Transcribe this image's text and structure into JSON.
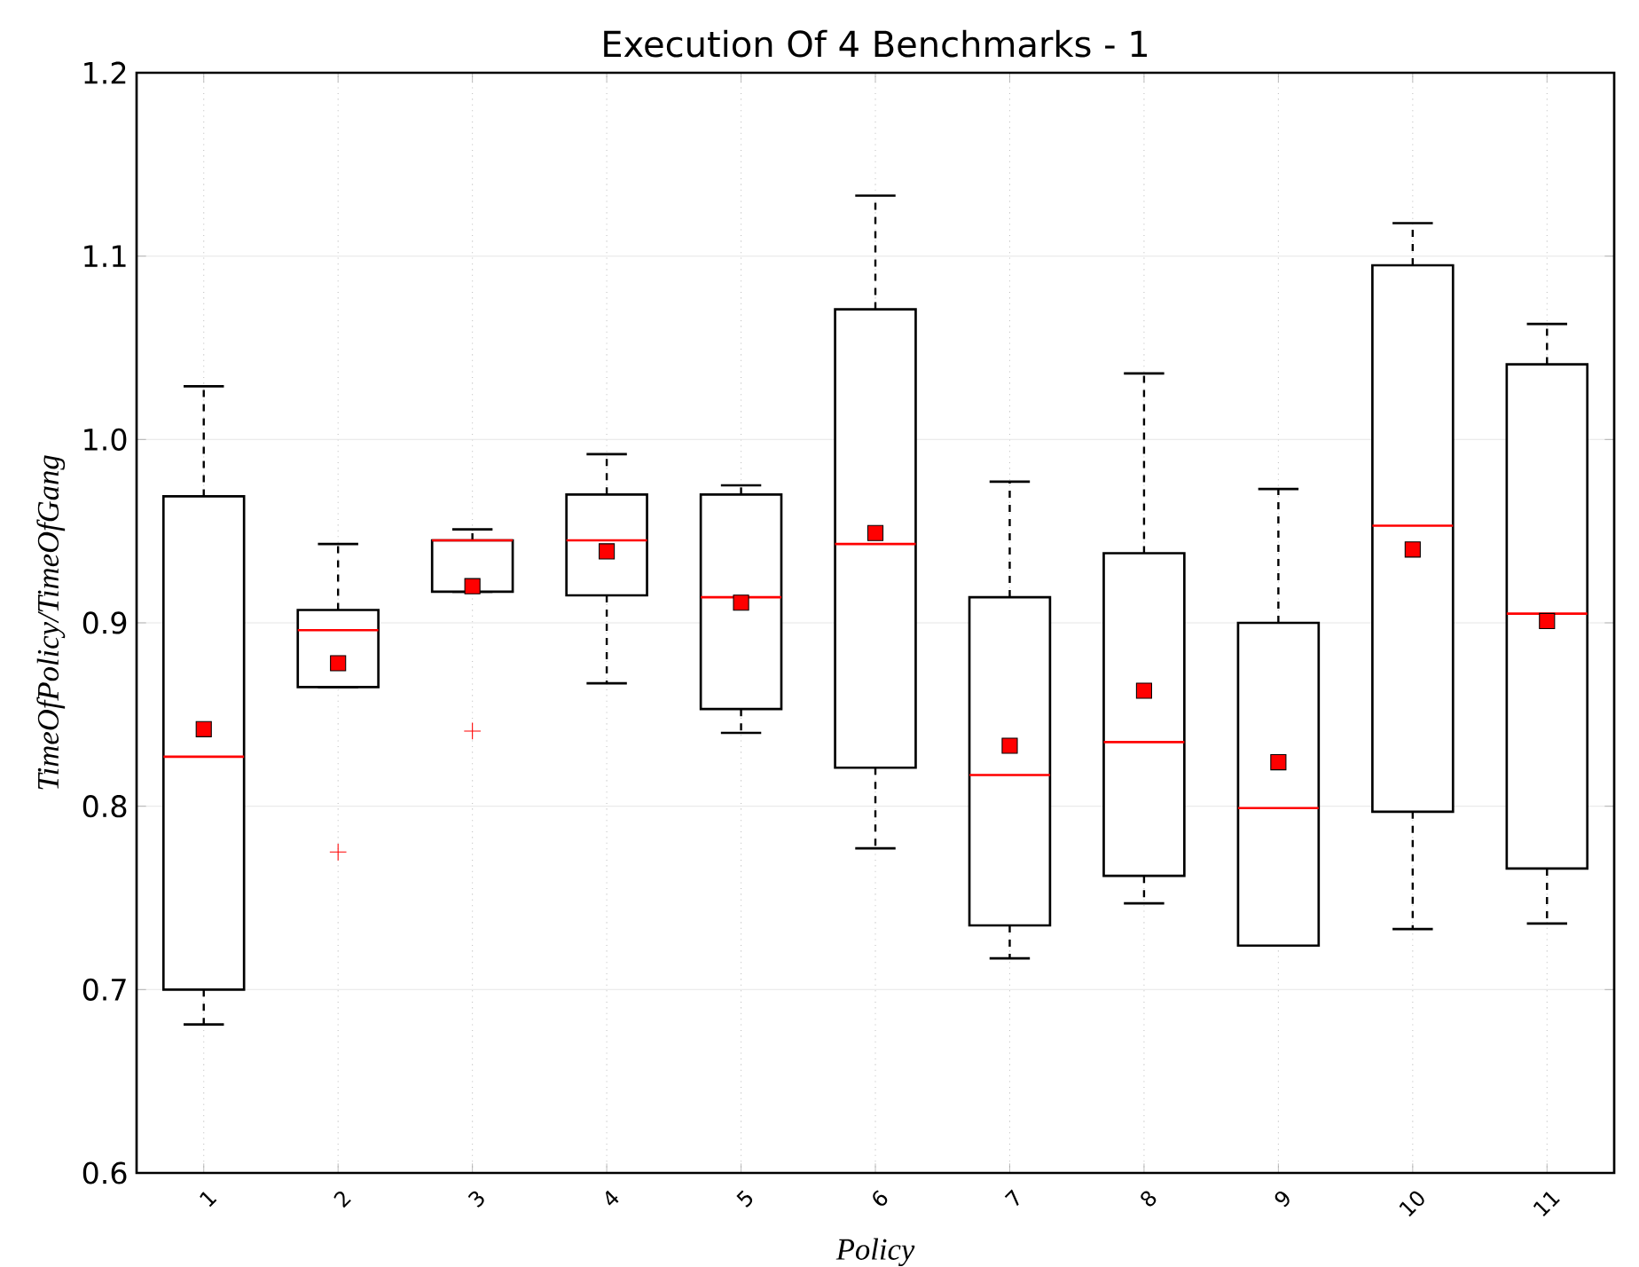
{
  "chart_data": {
    "type": "box",
    "title": "Execution Of 4 Benchmarks - 1",
    "xlabel": "Policy",
    "ylabel": "TimeOfPolicy/TimeOfGang",
    "categories": [
      "1",
      "2",
      "3",
      "4",
      "5",
      "6",
      "7",
      "8",
      "9",
      "10",
      "11"
    ],
    "boxes": [
      {
        "low": 0.681,
        "q1": 0.7,
        "median": 0.827,
        "q3": 0.969,
        "high": 1.029,
        "mean": 0.842
      },
      {
        "low": 0.865,
        "q1": 0.865,
        "median": 0.896,
        "q3": 0.907,
        "high": 0.943,
        "mean": 0.878,
        "outliers": [
          0.775
        ]
      },
      {
        "low": 0.917,
        "q1": 0.917,
        "median": 0.945,
        "q3": 0.945,
        "high": 0.951,
        "mean": 0.92,
        "outliers": [
          0.841
        ]
      },
      {
        "low": 0.867,
        "q1": 0.915,
        "median": 0.945,
        "q3": 0.97,
        "high": 0.992,
        "mean": 0.939
      },
      {
        "low": 0.84,
        "q1": 0.853,
        "median": 0.914,
        "q3": 0.97,
        "high": 0.975,
        "mean": 0.911
      },
      {
        "low": 0.777,
        "q1": 0.821,
        "median": 0.943,
        "q3": 1.071,
        "high": 1.133,
        "mean": 0.949
      },
      {
        "low": 0.717,
        "q1": 0.735,
        "median": 0.817,
        "q3": 0.914,
        "high": 0.977,
        "mean": 0.833
      },
      {
        "low": 0.747,
        "q1": 0.762,
        "median": 0.835,
        "q3": 0.938,
        "high": 1.036,
        "mean": 0.863
      },
      {
        "low": 0.724,
        "q1": 0.724,
        "median": 0.799,
        "q3": 0.9,
        "high": 0.973,
        "mean": 0.824
      },
      {
        "low": 0.733,
        "q1": 0.797,
        "median": 0.953,
        "q3": 1.095,
        "high": 1.118,
        "mean": 0.94
      },
      {
        "low": 0.736,
        "q1": 0.766,
        "median": 0.905,
        "q3": 1.041,
        "high": 1.063,
        "mean": 0.901
      }
    ],
    "ylim": [
      0.6,
      1.2
    ],
    "yticks": [
      {
        "value": 0.6,
        "label": "0.6"
      },
      {
        "value": 0.7,
        "label": "0.7"
      },
      {
        "value": 0.8,
        "label": "0.8"
      },
      {
        "value": 0.9,
        "label": "0.9"
      },
      {
        "value": 1.0,
        "label": "1.0"
      },
      {
        "value": 1.1,
        "label": "1.1"
      },
      {
        "value": 1.2,
        "label": "1.2"
      }
    ],
    "grid": true
  }
}
